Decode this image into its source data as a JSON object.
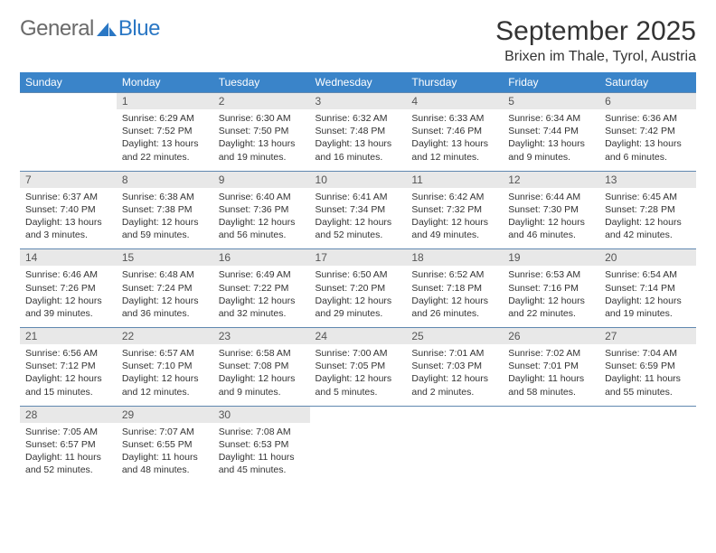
{
  "logo": {
    "word1": "General",
    "word2": "Blue"
  },
  "title": "September 2025",
  "location": "Brixen im Thale, Tyrol, Austria",
  "colors": {
    "header_bg": "#3a84c9",
    "header_text": "#ffffff",
    "daynum_bg": "#e8e8e8",
    "row_border": "#6088b0",
    "logo_gray": "#6a6a6a",
    "logo_blue": "#2a77c4",
    "body_text": "#333333",
    "page_bg": "#ffffff"
  },
  "day_headers": [
    "Sunday",
    "Monday",
    "Tuesday",
    "Wednesday",
    "Thursday",
    "Friday",
    "Saturday"
  ],
  "weeks": [
    [
      {
        "empty": true
      },
      {
        "n": "1",
        "sunrise": "6:29 AM",
        "sunset": "7:52 PM",
        "daylight": "13 hours and 22 minutes."
      },
      {
        "n": "2",
        "sunrise": "6:30 AM",
        "sunset": "7:50 PM",
        "daylight": "13 hours and 19 minutes."
      },
      {
        "n": "3",
        "sunrise": "6:32 AM",
        "sunset": "7:48 PM",
        "daylight": "13 hours and 16 minutes."
      },
      {
        "n": "4",
        "sunrise": "6:33 AM",
        "sunset": "7:46 PM",
        "daylight": "13 hours and 12 minutes."
      },
      {
        "n": "5",
        "sunrise": "6:34 AM",
        "sunset": "7:44 PM",
        "daylight": "13 hours and 9 minutes."
      },
      {
        "n": "6",
        "sunrise": "6:36 AM",
        "sunset": "7:42 PM",
        "daylight": "13 hours and 6 minutes."
      }
    ],
    [
      {
        "n": "7",
        "sunrise": "6:37 AM",
        "sunset": "7:40 PM",
        "daylight": "13 hours and 3 minutes."
      },
      {
        "n": "8",
        "sunrise": "6:38 AM",
        "sunset": "7:38 PM",
        "daylight": "12 hours and 59 minutes."
      },
      {
        "n": "9",
        "sunrise": "6:40 AM",
        "sunset": "7:36 PM",
        "daylight": "12 hours and 56 minutes."
      },
      {
        "n": "10",
        "sunrise": "6:41 AM",
        "sunset": "7:34 PM",
        "daylight": "12 hours and 52 minutes."
      },
      {
        "n": "11",
        "sunrise": "6:42 AM",
        "sunset": "7:32 PM",
        "daylight": "12 hours and 49 minutes."
      },
      {
        "n": "12",
        "sunrise": "6:44 AM",
        "sunset": "7:30 PM",
        "daylight": "12 hours and 46 minutes."
      },
      {
        "n": "13",
        "sunrise": "6:45 AM",
        "sunset": "7:28 PM",
        "daylight": "12 hours and 42 minutes."
      }
    ],
    [
      {
        "n": "14",
        "sunrise": "6:46 AM",
        "sunset": "7:26 PM",
        "daylight": "12 hours and 39 minutes."
      },
      {
        "n": "15",
        "sunrise": "6:48 AM",
        "sunset": "7:24 PM",
        "daylight": "12 hours and 36 minutes."
      },
      {
        "n": "16",
        "sunrise": "6:49 AM",
        "sunset": "7:22 PM",
        "daylight": "12 hours and 32 minutes."
      },
      {
        "n": "17",
        "sunrise": "6:50 AM",
        "sunset": "7:20 PM",
        "daylight": "12 hours and 29 minutes."
      },
      {
        "n": "18",
        "sunrise": "6:52 AM",
        "sunset": "7:18 PM",
        "daylight": "12 hours and 26 minutes."
      },
      {
        "n": "19",
        "sunrise": "6:53 AM",
        "sunset": "7:16 PM",
        "daylight": "12 hours and 22 minutes."
      },
      {
        "n": "20",
        "sunrise": "6:54 AM",
        "sunset": "7:14 PM",
        "daylight": "12 hours and 19 minutes."
      }
    ],
    [
      {
        "n": "21",
        "sunrise": "6:56 AM",
        "sunset": "7:12 PM",
        "daylight": "12 hours and 15 minutes."
      },
      {
        "n": "22",
        "sunrise": "6:57 AM",
        "sunset": "7:10 PM",
        "daylight": "12 hours and 12 minutes."
      },
      {
        "n": "23",
        "sunrise": "6:58 AM",
        "sunset": "7:08 PM",
        "daylight": "12 hours and 9 minutes."
      },
      {
        "n": "24",
        "sunrise": "7:00 AM",
        "sunset": "7:05 PM",
        "daylight": "12 hours and 5 minutes."
      },
      {
        "n": "25",
        "sunrise": "7:01 AM",
        "sunset": "7:03 PM",
        "daylight": "12 hours and 2 minutes."
      },
      {
        "n": "26",
        "sunrise": "7:02 AM",
        "sunset": "7:01 PM",
        "daylight": "11 hours and 58 minutes."
      },
      {
        "n": "27",
        "sunrise": "7:04 AM",
        "sunset": "6:59 PM",
        "daylight": "11 hours and 55 minutes."
      }
    ],
    [
      {
        "n": "28",
        "sunrise": "7:05 AM",
        "sunset": "6:57 PM",
        "daylight": "11 hours and 52 minutes."
      },
      {
        "n": "29",
        "sunrise": "7:07 AM",
        "sunset": "6:55 PM",
        "daylight": "11 hours and 48 minutes."
      },
      {
        "n": "30",
        "sunrise": "7:08 AM",
        "sunset": "6:53 PM",
        "daylight": "11 hours and 45 minutes."
      },
      {
        "empty": true
      },
      {
        "empty": true
      },
      {
        "empty": true
      },
      {
        "empty": true
      }
    ]
  ],
  "labels": {
    "sunrise_prefix": "Sunrise: ",
    "sunset_prefix": "Sunset: ",
    "daylight_prefix": "Daylight: "
  }
}
